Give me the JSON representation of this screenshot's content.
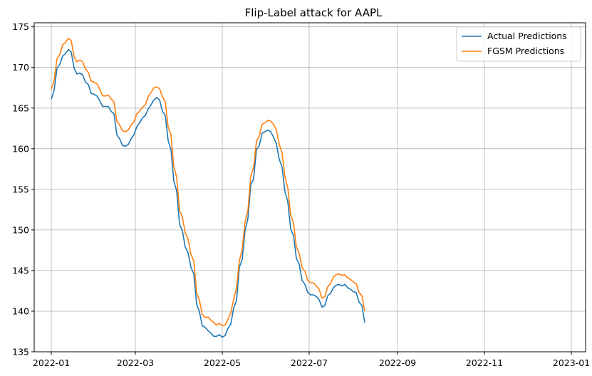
{
  "chart_data": {
    "type": "line",
    "title": "Flip-Label attack for AAPL",
    "xlabel": "",
    "ylabel": "",
    "x_range": [
      "2021-12-20",
      "2023-01-11"
    ],
    "ylim": [
      135,
      175.5
    ],
    "grid": true,
    "legend": "top-right",
    "x_ticks": [
      {
        "date": "2022-01-01",
        "label": "2022-01"
      },
      {
        "date": "2022-03-01",
        "label": "2022-03"
      },
      {
        "date": "2022-05-01",
        "label": "2022-05"
      },
      {
        "date": "2022-07-01",
        "label": "2022-07"
      },
      {
        "date": "2022-09-01",
        "label": "2022-09"
      },
      {
        "date": "2022-11-01",
        "label": "2022-11"
      },
      {
        "date": "2023-01-01",
        "label": "2023-01"
      }
    ],
    "y_ticks": [
      135,
      140,
      145,
      150,
      155,
      160,
      165,
      170,
      175
    ],
    "series": [
      {
        "name": "Actual Predictions",
        "color": "#1f77b4",
        "points": [
          [
            "2022-01-01",
            166.1
          ],
          [
            "2022-01-03",
            167.2
          ],
          [
            "2022-01-05",
            169.9
          ],
          [
            "2022-01-07",
            170.4
          ],
          [
            "2022-01-09",
            171.4
          ],
          [
            "2022-01-11",
            171.7
          ],
          [
            "2022-01-13",
            172.2
          ],
          [
            "2022-01-15",
            171.9
          ],
          [
            "2022-01-17",
            169.9
          ],
          [
            "2022-01-19",
            169.2
          ],
          [
            "2022-01-21",
            169.3
          ],
          [
            "2022-01-23",
            169.1
          ],
          [
            "2022-01-25",
            168.2
          ],
          [
            "2022-01-27",
            167.9
          ],
          [
            "2022-01-29",
            166.8
          ],
          [
            "2022-01-31",
            166.7
          ],
          [
            "2022-02-02",
            166.5
          ],
          [
            "2022-02-04",
            165.9
          ],
          [
            "2022-02-06",
            165.2
          ],
          [
            "2022-02-08",
            165.2
          ],
          [
            "2022-02-10",
            165.2
          ],
          [
            "2022-02-12",
            164.6
          ],
          [
            "2022-02-14",
            164.3
          ],
          [
            "2022-02-16",
            161.7
          ],
          [
            "2022-02-18",
            161.2
          ],
          [
            "2022-02-20",
            160.4
          ],
          [
            "2022-02-22",
            160.3
          ],
          [
            "2022-02-24",
            160.5
          ],
          [
            "2022-02-26",
            161.2
          ],
          [
            "2022-02-28",
            161.7
          ],
          [
            "2022-03-02",
            162.7
          ],
          [
            "2022-03-04",
            163.2
          ],
          [
            "2022-03-06",
            163.8
          ],
          [
            "2022-03-08",
            164.1
          ],
          [
            "2022-03-10",
            164.9
          ],
          [
            "2022-03-12",
            165.4
          ],
          [
            "2022-03-14",
            166.0
          ],
          [
            "2022-03-16",
            166.3
          ],
          [
            "2022-03-18",
            166.0
          ],
          [
            "2022-03-20",
            164.6
          ],
          [
            "2022-03-22",
            164.1
          ],
          [
            "2022-03-24",
            161.0
          ],
          [
            "2022-03-26",
            159.9
          ],
          [
            "2022-03-28",
            156.0
          ],
          [
            "2022-03-30",
            154.8
          ],
          [
            "2022-04-01",
            150.7
          ],
          [
            "2022-04-03",
            149.9
          ],
          [
            "2022-04-05",
            147.9
          ],
          [
            "2022-04-07",
            147.2
          ],
          [
            "2022-04-09",
            145.4
          ],
          [
            "2022-04-11",
            144.6
          ],
          [
            "2022-04-13",
            140.9
          ],
          [
            "2022-04-15",
            139.9
          ],
          [
            "2022-04-17",
            138.2
          ],
          [
            "2022-04-19",
            138.0
          ],
          [
            "2022-04-21",
            137.6
          ],
          [
            "2022-04-23",
            137.3
          ],
          [
            "2022-04-25",
            136.9
          ],
          [
            "2022-04-27",
            136.9
          ],
          [
            "2022-04-29",
            137.1
          ],
          [
            "2022-05-01",
            136.8
          ],
          [
            "2022-05-03",
            137.0
          ],
          [
            "2022-05-05",
            137.9
          ],
          [
            "2022-05-07",
            138.4
          ],
          [
            "2022-05-09",
            140.4
          ],
          [
            "2022-05-11",
            141.3
          ],
          [
            "2022-05-13",
            145.4
          ],
          [
            "2022-05-15",
            146.4
          ],
          [
            "2022-05-17",
            149.9
          ],
          [
            "2022-05-19",
            151.4
          ],
          [
            "2022-05-21",
            155.5
          ],
          [
            "2022-05-23",
            156.3
          ],
          [
            "2022-05-25",
            159.9
          ],
          [
            "2022-05-27",
            160.4
          ],
          [
            "2022-05-29",
            161.9
          ],
          [
            "2022-05-31",
            162.1
          ],
          [
            "2022-06-02",
            162.3
          ],
          [
            "2022-06-04",
            162.1
          ],
          [
            "2022-06-06",
            161.4
          ],
          [
            "2022-06-08",
            160.6
          ],
          [
            "2022-06-10",
            158.7
          ],
          [
            "2022-06-12",
            157.7
          ],
          [
            "2022-06-14",
            154.7
          ],
          [
            "2022-06-16",
            153.5
          ],
          [
            "2022-06-18",
            150.1
          ],
          [
            "2022-06-20",
            149.3
          ],
          [
            "2022-06-22",
            146.5
          ],
          [
            "2022-06-24",
            145.8
          ],
          [
            "2022-06-26",
            143.8
          ],
          [
            "2022-06-28",
            143.3
          ],
          [
            "2022-06-30",
            142.3
          ],
          [
            "2022-07-02",
            142.0
          ],
          [
            "2022-07-04",
            142.0
          ],
          [
            "2022-07-06",
            141.8
          ],
          [
            "2022-07-08",
            141.4
          ],
          [
            "2022-07-10",
            140.5
          ],
          [
            "2022-07-12",
            140.7
          ],
          [
            "2022-07-14",
            141.9
          ],
          [
            "2022-07-16",
            142.2
          ],
          [
            "2022-07-18",
            142.9
          ],
          [
            "2022-07-20",
            143.2
          ],
          [
            "2022-07-22",
            143.3
          ],
          [
            "2022-07-24",
            143.1
          ],
          [
            "2022-07-26",
            143.3
          ],
          [
            "2022-07-28",
            142.9
          ],
          [
            "2022-07-30",
            142.7
          ],
          [
            "2022-08-01",
            142.4
          ],
          [
            "2022-08-03",
            142.3
          ],
          [
            "2022-08-05",
            141.1
          ],
          [
            "2022-08-07",
            140.7
          ],
          [
            "2022-08-09",
            138.6
          ]
        ]
      },
      {
        "name": "FGSM Predictions",
        "color": "#ff7f0e",
        "points": [
          [
            "2022-01-01",
            167.3
          ],
          [
            "2022-01-03",
            168.4
          ],
          [
            "2022-01-05",
            171.1
          ],
          [
            "2022-01-07",
            171.6
          ],
          [
            "2022-01-09",
            172.8
          ],
          [
            "2022-01-11",
            173.1
          ],
          [
            "2022-01-13",
            173.6
          ],
          [
            "2022-01-15",
            173.3
          ],
          [
            "2022-01-17",
            171.3
          ],
          [
            "2022-01-19",
            170.7
          ],
          [
            "2022-01-21",
            170.9
          ],
          [
            "2022-01-23",
            170.7
          ],
          [
            "2022-01-25",
            169.8
          ],
          [
            "2022-01-27",
            169.4
          ],
          [
            "2022-01-29",
            168.3
          ],
          [
            "2022-01-31",
            168.2
          ],
          [
            "2022-02-02",
            168.0
          ],
          [
            "2022-02-04",
            167.3
          ],
          [
            "2022-02-06",
            166.5
          ],
          [
            "2022-02-08",
            166.5
          ],
          [
            "2022-02-10",
            166.6
          ],
          [
            "2022-02-12",
            166.1
          ],
          [
            "2022-02-14",
            165.8
          ],
          [
            "2022-02-16",
            163.4
          ],
          [
            "2022-02-18",
            162.9
          ],
          [
            "2022-02-20",
            162.2
          ],
          [
            "2022-02-22",
            162.1
          ],
          [
            "2022-02-24",
            162.3
          ],
          [
            "2022-02-26",
            162.9
          ],
          [
            "2022-02-28",
            163.3
          ],
          [
            "2022-03-02",
            164.3
          ],
          [
            "2022-03-04",
            164.6
          ],
          [
            "2022-03-06",
            165.1
          ],
          [
            "2022-03-08",
            165.4
          ],
          [
            "2022-03-10",
            166.4
          ],
          [
            "2022-03-12",
            166.9
          ],
          [
            "2022-03-14",
            167.5
          ],
          [
            "2022-03-16",
            167.6
          ],
          [
            "2022-03-18",
            167.4
          ],
          [
            "2022-03-20",
            166.4
          ],
          [
            "2022-03-22",
            165.8
          ],
          [
            "2022-03-24",
            162.7
          ],
          [
            "2022-03-26",
            161.7
          ],
          [
            "2022-03-28",
            157.8
          ],
          [
            "2022-03-30",
            156.5
          ],
          [
            "2022-04-01",
            152.4
          ],
          [
            "2022-04-03",
            151.6
          ],
          [
            "2022-04-05",
            149.6
          ],
          [
            "2022-04-07",
            148.9
          ],
          [
            "2022-04-09",
            147.0
          ],
          [
            "2022-04-11",
            146.2
          ],
          [
            "2022-04-13",
            142.3
          ],
          [
            "2022-04-15",
            141.3
          ],
          [
            "2022-04-17",
            139.6
          ],
          [
            "2022-04-19",
            139.2
          ],
          [
            "2022-04-21",
            139.3
          ],
          [
            "2022-04-23",
            138.9
          ],
          [
            "2022-04-25",
            138.6
          ],
          [
            "2022-04-27",
            138.3
          ],
          [
            "2022-04-29",
            138.5
          ],
          [
            "2022-05-01",
            138.2
          ],
          [
            "2022-05-03",
            138.3
          ],
          [
            "2022-05-05",
            139.0
          ],
          [
            "2022-05-07",
            139.8
          ],
          [
            "2022-05-09",
            141.5
          ],
          [
            "2022-05-11",
            142.8
          ],
          [
            "2022-05-13",
            146.2
          ],
          [
            "2022-05-15",
            147.6
          ],
          [
            "2022-05-17",
            151.0
          ],
          [
            "2022-05-19",
            152.4
          ],
          [
            "2022-05-21",
            156.6
          ],
          [
            "2022-05-23",
            157.7
          ],
          [
            "2022-05-25",
            160.9
          ],
          [
            "2022-05-27",
            161.6
          ],
          [
            "2022-05-29",
            163.0
          ],
          [
            "2022-05-31",
            163.2
          ],
          [
            "2022-06-02",
            163.5
          ],
          [
            "2022-06-04",
            163.4
          ],
          [
            "2022-06-06",
            163.0
          ],
          [
            "2022-06-08",
            162.3
          ],
          [
            "2022-06-10",
            160.5
          ],
          [
            "2022-06-12",
            159.5
          ],
          [
            "2022-06-14",
            156.5
          ],
          [
            "2022-06-16",
            155.2
          ],
          [
            "2022-06-18",
            151.8
          ],
          [
            "2022-06-20",
            150.9
          ],
          [
            "2022-06-22",
            147.9
          ],
          [
            "2022-06-24",
            147.1
          ],
          [
            "2022-06-26",
            145.4
          ],
          [
            "2022-06-28",
            144.9
          ],
          [
            "2022-06-30",
            143.8
          ],
          [
            "2022-07-02",
            143.5
          ],
          [
            "2022-07-04",
            143.5
          ],
          [
            "2022-07-06",
            143.1
          ],
          [
            "2022-07-08",
            142.7
          ],
          [
            "2022-07-10",
            141.6
          ],
          [
            "2022-07-12",
            141.8
          ],
          [
            "2022-07-14",
            143.0
          ],
          [
            "2022-07-16",
            143.4
          ],
          [
            "2022-07-18",
            144.2
          ],
          [
            "2022-07-20",
            144.5
          ],
          [
            "2022-07-22",
            144.6
          ],
          [
            "2022-07-24",
            144.4
          ],
          [
            "2022-07-26",
            144.5
          ],
          [
            "2022-07-28",
            144.1
          ],
          [
            "2022-07-30",
            143.9
          ],
          [
            "2022-08-01",
            143.6
          ],
          [
            "2022-08-03",
            143.4
          ],
          [
            "2022-08-05",
            142.3
          ],
          [
            "2022-08-07",
            141.9
          ],
          [
            "2022-08-09",
            140.0
          ]
        ]
      }
    ]
  }
}
